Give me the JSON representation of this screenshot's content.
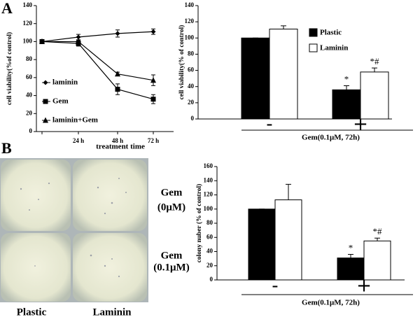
{
  "panels": [
    "A",
    "B"
  ],
  "photo": {
    "row_labels": [
      [
        "Gem",
        "(0μM)"
      ],
      [
        "Gem",
        "(0.1μM)"
      ]
    ],
    "column_labels": [
      "Plastic",
      "Laminin"
    ]
  },
  "chart_data": [
    {
      "type": "line",
      "x_label": "treatment  time",
      "y_label": "cell viability(%of control)",
      "categories": [
        null,
        "24 h",
        "48 h",
        "72 h"
      ],
      "ylim": [
        0,
        140
      ],
      "yticks": [
        0,
        20,
        40,
        60,
        80,
        100,
        120,
        140
      ],
      "legend": "lower left",
      "series": [
        {
          "name": "laminin",
          "color": "#000000",
          "marker": "diamond",
          "values": [
            100,
            105,
            109,
            111
          ],
          "errors": [
            0,
            3,
            4,
            3
          ]
        },
        {
          "name": "Gem",
          "color": "#000000",
          "marker": "square",
          "values": [
            100,
            98,
            47,
            36
          ],
          "errors": [
            0,
            3,
            6,
            5
          ]
        },
        {
          "name": "laminin+Gem",
          "color": "#000000",
          "marker": "triangle",
          "values": [
            100,
            100,
            64,
            57
          ],
          "errors": [
            0,
            2,
            2,
            6
          ]
        }
      ]
    },
    {
      "type": "bar",
      "x_label": "Gem(0.1μM, 72h)",
      "y_label": "cell viability(% of control)",
      "categories": [
        "-",
        "+"
      ],
      "ylim": [
        0,
        140
      ],
      "yticks": [
        0,
        20,
        40,
        60,
        80,
        100,
        120,
        140
      ],
      "legend": "upper right",
      "series": [
        {
          "name": "Plastic",
          "color": "#000000",
          "values": [
            100,
            36
          ],
          "errors": [
            0,
            5
          ],
          "annotations": [
            null,
            "*"
          ]
        },
        {
          "name": "Laminin",
          "color": "#ffffff",
          "values": [
            111,
            58
          ],
          "errors": [
            4,
            5
          ],
          "annotations": [
            null,
            "*#"
          ]
        }
      ]
    },
    {
      "type": "bar",
      "x_label": "Gem(0.1μM, 72h)",
      "y_label": "colony nuber (% of  control)",
      "categories": [
        "-",
        "+"
      ],
      "ylim": [
        0,
        160
      ],
      "yticks": [
        0,
        20,
        40,
        60,
        80,
        100,
        120,
        140,
        160
      ],
      "series": [
        {
          "color": "#000000",
          "values": [
            100,
            31
          ],
          "errors": [
            0,
            5
          ],
          "annotations": [
            null,
            "*"
          ]
        },
        {
          "color": "#ffffff",
          "values": [
            113,
            55
          ],
          "errors": [
            22,
            4
          ],
          "annotations": [
            null,
            "*#"
          ]
        }
      ]
    }
  ]
}
